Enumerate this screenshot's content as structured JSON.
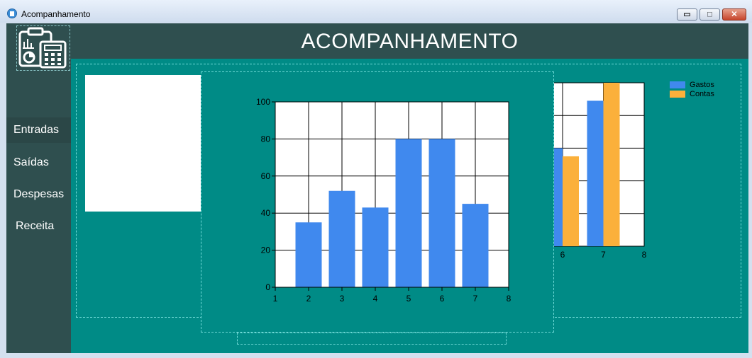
{
  "window": {
    "title": "Acompanhamento",
    "buttons": {
      "minimize": "▭",
      "maximize": "□",
      "close": "✕"
    }
  },
  "header": {
    "title": "ACOMPANHAMENTO"
  },
  "sidebar": {
    "logo_icon": "clipboard-calculator-icon",
    "items": [
      {
        "label": "Entradas"
      },
      {
        "label": "Saídas"
      },
      {
        "label": "Despesas"
      },
      {
        "label": "Receita"
      }
    ]
  },
  "colors": {
    "sidebar": "#2f4f4f",
    "content": "#008b86",
    "series_blue": "#4089ee",
    "series_orange": "#fbb03b",
    "donut": [
      "#6b8e23",
      "#c04000",
      "#b8860b"
    ]
  },
  "chart_data": [
    {
      "type": "pie",
      "variant": "donut",
      "partially_hidden": true,
      "slices": [
        {
          "color": "#6b8e23"
        },
        {
          "color": "#c04000"
        },
        {
          "color": "#b8860b"
        }
      ]
    },
    {
      "type": "bar",
      "partially_hidden": true,
      "legend": [
        "Gastos",
        "Contas"
      ],
      "legend_position": "top-right",
      "x_ticks": [
        "6",
        "7",
        "8"
      ],
      "series": [
        {
          "name": "Gastos",
          "x": [
            6,
            7
          ],
          "values": [
            60,
            89
          ]
        },
        {
          "name": "Contas",
          "x": [
            6,
            7
          ],
          "values": [
            55,
            100
          ]
        }
      ]
    },
    {
      "type": "bar",
      "x": [
        2,
        3,
        4,
        5,
        6,
        7
      ],
      "values": [
        35,
        52,
        43,
        80,
        80,
        45
      ],
      "xlim": [
        1,
        8
      ],
      "ylim": [
        0,
        100
      ],
      "x_ticks": [
        "1",
        "2",
        "3",
        "4",
        "5",
        "6",
        "7",
        "8"
      ],
      "y_ticks": [
        "0",
        "20",
        "40",
        "60",
        "80",
        "100"
      ],
      "grid": true,
      "color": "#4089ee"
    }
  ]
}
